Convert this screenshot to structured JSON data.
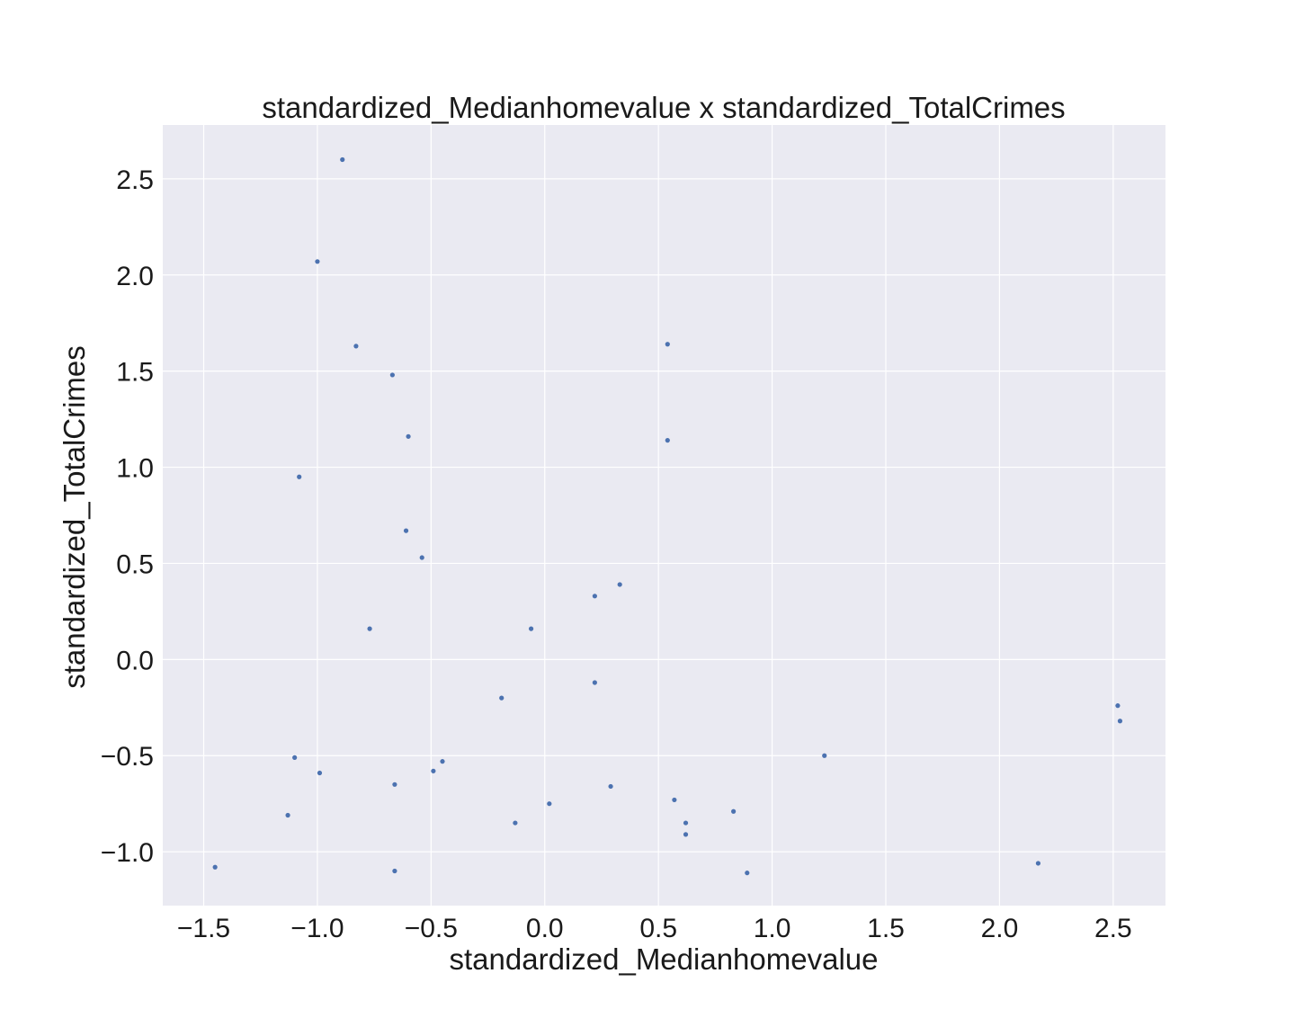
{
  "chart_data": {
    "type": "scatter",
    "title": "standardized_Medianhomevalue x standardized_TotalCrimes",
    "xlabel": "standardized_Medianhomevalue",
    "ylabel": "standardized_TotalCrimes",
    "xlim": [
      -1.68,
      2.73
    ],
    "ylim": [
      -1.28,
      2.78
    ],
    "xticks": [
      -1.5,
      -1.0,
      -0.5,
      0.0,
      0.5,
      1.0,
      1.5,
      2.0,
      2.5
    ],
    "xtick_labels": [
      "−1.5",
      "−1.0",
      "−0.5",
      "0.0",
      "0.5",
      "1.0",
      "1.5",
      "2.0",
      "2.5"
    ],
    "yticks": [
      -1.0,
      -0.5,
      0.0,
      0.5,
      1.0,
      1.5,
      2.0,
      2.5
    ],
    "ytick_labels": [
      "−1.0",
      "−0.5",
      "0.0",
      "0.5",
      "1.0",
      "1.5",
      "2.0",
      "2.5"
    ],
    "grid": true,
    "background_color": "#eaeaf2",
    "grid_color": "#ffffff",
    "marker_color": "#4c72b0",
    "points": [
      {
        "x": -0.89,
        "y": 2.6
      },
      {
        "x": -1.0,
        "y": 2.07
      },
      {
        "x": -0.83,
        "y": 1.63
      },
      {
        "x": -0.67,
        "y": 1.48
      },
      {
        "x": -0.6,
        "y": 1.16
      },
      {
        "x": -1.08,
        "y": 0.95
      },
      {
        "x": -0.61,
        "y": 0.67
      },
      {
        "x": -0.54,
        "y": 0.53
      },
      {
        "x": -0.77,
        "y": 0.16
      },
      {
        "x": 0.54,
        "y": 1.64
      },
      {
        "x": 0.54,
        "y": 1.14
      },
      {
        "x": 0.33,
        "y": 0.39
      },
      {
        "x": 0.22,
        "y": 0.33
      },
      {
        "x": -0.06,
        "y": 0.16
      },
      {
        "x": 0.22,
        "y": -0.12
      },
      {
        "x": -0.19,
        "y": -0.2
      },
      {
        "x": -1.1,
        "y": -0.51
      },
      {
        "x": -0.99,
        "y": -0.59
      },
      {
        "x": -0.66,
        "y": -0.65
      },
      {
        "x": -0.49,
        "y": -0.58
      },
      {
        "x": -0.45,
        "y": -0.53
      },
      {
        "x": -1.13,
        "y": -0.81
      },
      {
        "x": -1.45,
        "y": -1.08
      },
      {
        "x": -0.66,
        "y": -1.1
      },
      {
        "x": -0.13,
        "y": -0.85
      },
      {
        "x": 0.02,
        "y": -0.75
      },
      {
        "x": 0.29,
        "y": -0.66
      },
      {
        "x": 0.57,
        "y": -0.73
      },
      {
        "x": 0.62,
        "y": -0.85
      },
      {
        "x": 0.62,
        "y": -0.91
      },
      {
        "x": 0.83,
        "y": -0.79
      },
      {
        "x": 0.89,
        "y": -1.11
      },
      {
        "x": 1.23,
        "y": -0.5
      },
      {
        "x": 2.17,
        "y": -1.06
      },
      {
        "x": 2.52,
        "y": -0.24
      },
      {
        "x": 2.53,
        "y": -0.32
      }
    ]
  }
}
